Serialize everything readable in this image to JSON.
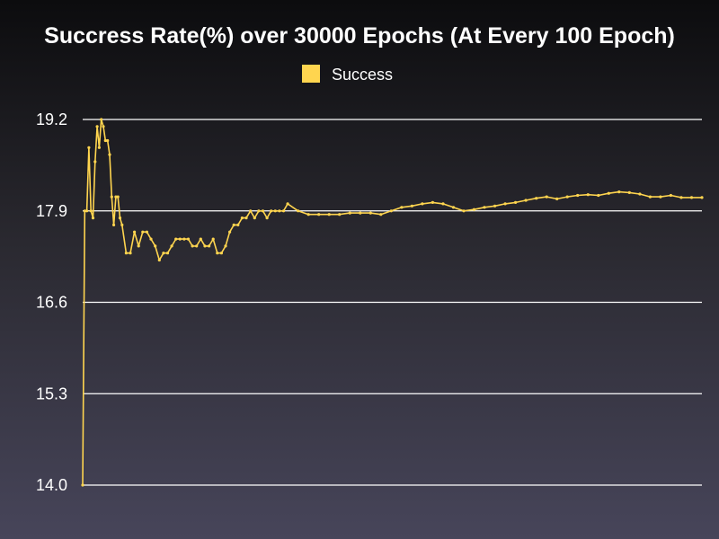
{
  "chart_data": {
    "type": "line",
    "title": "Succress Rate(%) over 30000 Epochs (At Every 100 Epoch)",
    "xlabel": "",
    "ylabel": "",
    "ylim": [
      14.0,
      19.2
    ],
    "yticks": [
      "14.0",
      "15.3",
      "16.6",
      "17.9",
      "19.2"
    ],
    "xlim": [
      1,
      300
    ],
    "grid": "horizontal",
    "legend_position": "top-center",
    "series": [
      {
        "name": "Success",
        "color": "#ffd54f",
        "x": [
          1,
          2,
          3,
          4,
          5,
          6,
          7,
          8,
          9,
          10,
          11,
          12,
          13,
          14,
          15,
          16,
          17,
          18,
          19,
          20,
          22,
          24,
          26,
          28,
          30,
          32,
          34,
          36,
          38,
          40,
          42,
          44,
          46,
          48,
          50,
          52,
          54,
          56,
          58,
          60,
          62,
          64,
          66,
          68,
          70,
          72,
          74,
          76,
          78,
          80,
          82,
          84,
          86,
          88,
          90,
          92,
          94,
          96,
          98,
          100,
          105,
          110,
          115,
          120,
          125,
          130,
          135,
          140,
          145,
          150,
          155,
          160,
          165,
          170,
          175,
          180,
          185,
          190,
          195,
          200,
          205,
          210,
          215,
          220,
          225,
          230,
          235,
          240,
          245,
          250,
          255,
          260,
          265,
          270,
          275,
          280,
          285,
          290,
          295,
          300
        ],
        "values": [
          14.0,
          17.9,
          17.9,
          18.8,
          17.9,
          17.8,
          18.6,
          19.1,
          18.8,
          19.2,
          19.1,
          18.9,
          18.9,
          18.7,
          18.1,
          17.7,
          18.1,
          18.1,
          17.8,
          17.7,
          17.3,
          17.3,
          17.6,
          17.4,
          17.6,
          17.6,
          17.5,
          17.4,
          17.2,
          17.3,
          17.3,
          17.4,
          17.5,
          17.5,
          17.5,
          17.5,
          17.4,
          17.4,
          17.5,
          17.4,
          17.4,
          17.5,
          17.3,
          17.3,
          17.4,
          17.6,
          17.7,
          17.7,
          17.8,
          17.8,
          17.9,
          17.8,
          17.9,
          17.9,
          17.8,
          17.9,
          17.9,
          17.9,
          17.9,
          18.0,
          17.9,
          17.85,
          17.85,
          17.85,
          17.85,
          17.87,
          17.87,
          17.87,
          17.85,
          17.9,
          17.95,
          17.97,
          18.0,
          18.02,
          18.0,
          17.95,
          17.9,
          17.92,
          17.95,
          17.97,
          18.0,
          18.02,
          18.05,
          18.08,
          18.1,
          18.07,
          18.1,
          18.12,
          18.13,
          18.12,
          18.15,
          18.17,
          18.16,
          18.14,
          18.1,
          18.1,
          18.12,
          18.09,
          18.09,
          18.09
        ]
      }
    ]
  }
}
